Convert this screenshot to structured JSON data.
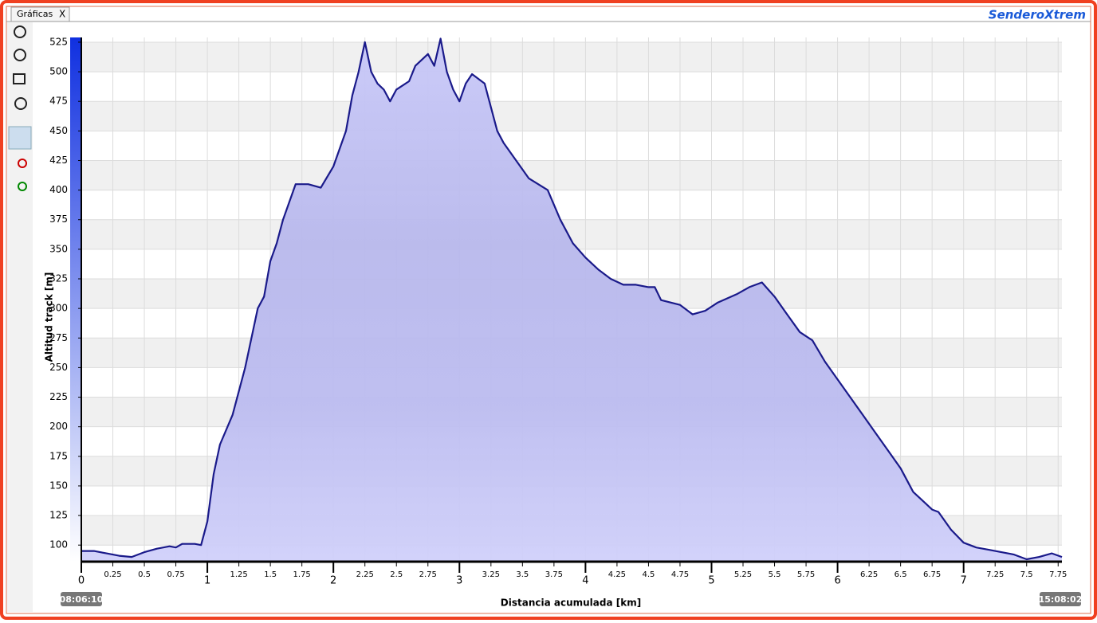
{
  "tab": {
    "label": "Gráficas",
    "close": "X"
  },
  "logo": "SenderoXtrem",
  "start_time": "08:06:10",
  "end_time": "15:08:02",
  "chart_data": {
    "type": "area",
    "x_label": "Distancia acumulada [km]",
    "y_label": "Altitud track [m]",
    "color": "#1a1a8a",
    "fill": "#c8c8f8",
    "grid": true,
    "xlim": [
      0,
      7.78
    ],
    "ylim": [
      86,
      529
    ],
    "xticks": [
      0,
      0.25,
      0.5,
      0.75,
      1,
      1.25,
      1.5,
      1.75,
      2,
      2.25,
      2.5,
      2.75,
      3,
      3.25,
      3.5,
      3.75,
      4,
      4.25,
      4.5,
      4.75,
      5,
      5.25,
      5.5,
      5.75,
      6,
      6.25,
      6.5,
      6.75,
      7,
      7.25,
      7.5,
      7.75
    ],
    "yticks": [
      100,
      125,
      150,
      175,
      200,
      225,
      250,
      275,
      300,
      325,
      350,
      375,
      400,
      425,
      450,
      475,
      500,
      525
    ],
    "x": [
      0,
      0.1,
      0.2,
      0.3,
      0.4,
      0.5,
      0.6,
      0.7,
      0.75,
      0.8,
      0.9,
      0.95,
      1.0,
      1.05,
      1.1,
      1.2,
      1.3,
      1.35,
      1.4,
      1.45,
      1.5,
      1.55,
      1.6,
      1.65,
      1.7,
      1.8,
      1.9,
      2.0,
      2.1,
      2.15,
      2.2,
      2.25,
      2.3,
      2.35,
      2.4,
      2.45,
      2.5,
      2.6,
      2.65,
      2.7,
      2.75,
      2.8,
      2.85,
      2.9,
      2.95,
      3.0,
      3.05,
      3.1,
      3.2,
      3.25,
      3.3,
      3.35,
      3.45,
      3.55,
      3.7,
      3.8,
      3.9,
      4.0,
      4.1,
      4.2,
      4.3,
      4.4,
      4.5,
      4.55,
      4.6,
      4.75,
      4.85,
      4.95,
      5.05,
      5.2,
      5.3,
      5.4,
      5.5,
      5.6,
      5.7,
      5.8,
      5.9,
      6.0,
      6.1,
      6.2,
      6.3,
      6.4,
      6.5,
      6.6,
      6.7,
      6.75,
      6.8,
      6.9,
      7.0,
      7.1,
      7.2,
      7.3,
      7.4,
      7.5,
      7.6,
      7.7,
      7.78
    ],
    "values": [
      95,
      95,
      93,
      91,
      90,
      94,
      97,
      99,
      98,
      101,
      101,
      100,
      120,
      160,
      185,
      210,
      250,
      275,
      300,
      310,
      340,
      355,
      375,
      390,
      405,
      405,
      402,
      420,
      450,
      480,
      500,
      525,
      500,
      490,
      485,
      475,
      485,
      492,
      505,
      510,
      515,
      505,
      528,
      500,
      485,
      475,
      490,
      498,
      490,
      470,
      450,
      440,
      425,
      410,
      400,
      375,
      355,
      343,
      333,
      325,
      320,
      320,
      318,
      318,
      307,
      303,
      295,
      298,
      305,
      312,
      318,
      322,
      310,
      295,
      280,
      273,
      255,
      240,
      225,
      210,
      195,
      180,
      165,
      145,
      135,
      130,
      128,
      113,
      102,
      98,
      96,
      94,
      92,
      88,
      90,
      93,
      90
    ]
  }
}
